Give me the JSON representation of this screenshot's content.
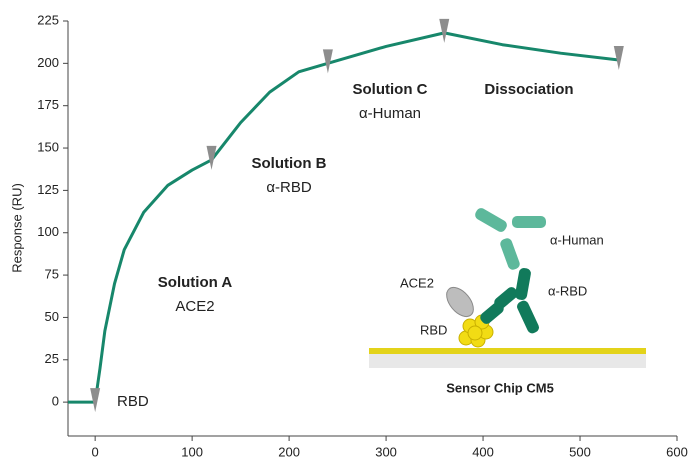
{
  "chart_data": {
    "type": "line",
    "y_label": "Response (RU)",
    "x": [
      -28,
      0,
      5,
      10,
      20,
      30,
      50,
      75,
      100,
      120,
      150,
      180,
      210,
      240,
      300,
      360,
      420,
      480,
      540
    ],
    "series": [
      {
        "color": "#17876b",
        "values": [
          0,
          0,
          20,
          42,
          70,
          90,
          112,
          128,
          137,
          143,
          165,
          183,
          195,
          200,
          210,
          218,
          211,
          206,
          202
        ]
      }
    ],
    "injection_x": [
      0,
      120,
      240,
      360,
      540
    ],
    "xlim": [
      -28,
      600
    ],
    "ylim": [
      -20,
      225
    ],
    "xticks": [
      0,
      100,
      200,
      300,
      400,
      500,
      600
    ],
    "yticks": [
      0,
      25,
      50,
      75,
      100,
      125,
      150,
      175,
      200,
      225
    ],
    "grid": false,
    "annotations": [
      {
        "title": "Solution A",
        "text": "ACE2"
      },
      {
        "title": "Solution B",
        "text": "α-RBD"
      },
      {
        "title": "Solution C",
        "text": "α-Human"
      },
      {
        "title": "Dissociation"
      },
      {
        "text": "RBD"
      }
    ],
    "diagram": {
      "labels": [
        "α-Human",
        "α-RBD",
        "ACE2",
        "RBD"
      ],
      "chip": "Sensor Chip CM5"
    }
  }
}
